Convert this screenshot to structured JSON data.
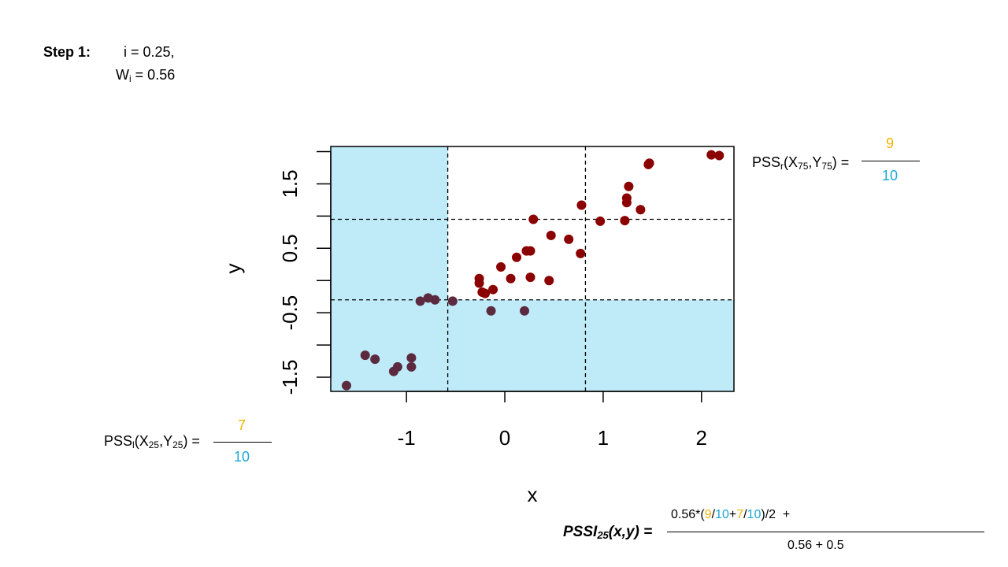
{
  "colors": {
    "shade": "#bfeaf8",
    "point_upper": "#8b0000",
    "point_lower": "#5c2a3f",
    "numerator": "#f0b400",
    "denominator": "#1aa7d6"
  },
  "step": {
    "label": "Step 1:",
    "i_text": "i = 0.25,",
    "w_main": "W",
    "w_sub": "i",
    "w_value": " = 0.56"
  },
  "pss_r": {
    "prefix": "PSS",
    "sub_r": "r",
    "open": "(X",
    "sub_x": "75",
    "mid": ",Y",
    "sub_y": "75",
    "close": ") =",
    "numerator": "9",
    "denominator": "10"
  },
  "pss_l": {
    "prefix": "PSS",
    "sub_l": "l",
    "open": "(X",
    "sub_x": "25",
    "mid": ",Y",
    "sub_y": "25",
    "close": ") =",
    "numerator": "7",
    "denominator": "10"
  },
  "pssi": {
    "label_main": "PSSI",
    "label_sub": "25",
    "label_args": "(x,y) =",
    "num_prefix": "0.56*(",
    "n1": "9",
    "s1": "/",
    "d1": "10",
    "plus": "+",
    "n2": "7",
    "s2": "/",
    "d2": "10",
    "num_suffix": ")/2  +",
    "denominator": "0.56 + 0.5"
  },
  "chart_data": {
    "type": "scatter",
    "xlabel": "x",
    "ylabel": "y",
    "xlim": [
      -1.77,
      2.33
    ],
    "ylim": [
      -1.72,
      2.08
    ],
    "x_ticks": [
      -1,
      0,
      1,
      2
    ],
    "y_ticks": [
      -1.5,
      -0.5,
      0.5,
      1.5
    ],
    "x_tick_labels": [
      "-1",
      "0",
      "1",
      "2"
    ],
    "y_tick_labels": [
      "-1.5",
      "-0.5",
      "0.5",
      "1.5"
    ],
    "y_minor_ticks": [
      -1.0,
      0.0,
      1.0,
      2.0
    ],
    "vlines": [
      -0.58,
      0.82
    ],
    "hlines": [
      -0.3,
      0.95
    ],
    "shaded_regions": [
      {
        "x": [
          -1.77,
          -0.58
        ],
        "y": [
          -1.72,
          2.08
        ]
      },
      {
        "x": [
          -0.58,
          2.33
        ],
        "y": [
          -1.72,
          -0.3
        ]
      }
    ],
    "grid": false,
    "points": [
      {
        "x": -1.61,
        "y": -1.63
      },
      {
        "x": -1.42,
        "y": -1.16
      },
      {
        "x": -1.32,
        "y": -1.22
      },
      {
        "x": -1.13,
        "y": -1.41
      },
      {
        "x": -1.09,
        "y": -1.34
      },
      {
        "x": -0.95,
        "y": -1.2
      },
      {
        "x": -0.95,
        "y": -1.34
      },
      {
        "x": -0.86,
        "y": -0.32
      },
      {
        "x": -0.78,
        "y": -0.27
      },
      {
        "x": -0.71,
        "y": -0.3
      },
      {
        "x": -0.53,
        "y": -0.32
      },
      {
        "x": -0.26,
        "y": 0.03
      },
      {
        "x": -0.26,
        "y": -0.04
      },
      {
        "x": -0.23,
        "y": -0.18
      },
      {
        "x": -0.2,
        "y": -0.2
      },
      {
        "x": -0.14,
        "y": -0.47
      },
      {
        "x": -0.12,
        "y": -0.14
      },
      {
        "x": -0.04,
        "y": 0.21
      },
      {
        "x": 0.06,
        "y": 0.03
      },
      {
        "x": 0.12,
        "y": 0.36
      },
      {
        "x": 0.2,
        "y": -0.47
      },
      {
        "x": 0.22,
        "y": 0.46
      },
      {
        "x": 0.26,
        "y": 0.46
      },
      {
        "x": 0.26,
        "y": 0.05
      },
      {
        "x": 0.29,
        "y": 0.95
      },
      {
        "x": 0.45,
        "y": 0.0
      },
      {
        "x": 0.47,
        "y": 0.7
      },
      {
        "x": 0.65,
        "y": 0.64
      },
      {
        "x": 0.77,
        "y": 0.42
      },
      {
        "x": 0.78,
        "y": 1.17
      },
      {
        "x": 0.97,
        "y": 0.92
      },
      {
        "x": 1.22,
        "y": 0.93
      },
      {
        "x": 1.24,
        "y": 1.21
      },
      {
        "x": 1.24,
        "y": 1.28
      },
      {
        "x": 1.26,
        "y": 1.46
      },
      {
        "x": 1.38,
        "y": 1.1
      },
      {
        "x": 1.46,
        "y": 1.8
      },
      {
        "x": 1.47,
        "y": 1.82
      },
      {
        "x": 2.1,
        "y": 1.95
      },
      {
        "x": 2.18,
        "y": 1.94
      }
    ]
  }
}
